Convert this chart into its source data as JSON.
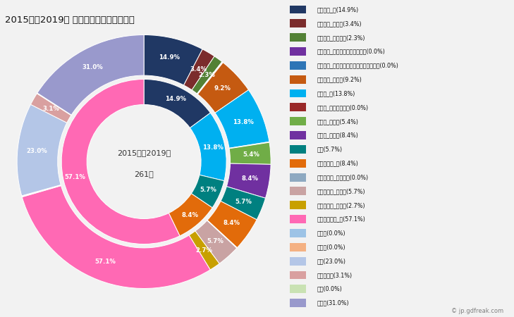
{
  "title": "2015年～2019年 飯南町の女性の死因構成",
  "center_text_line1": "2015年～2019年",
  "center_text_line2": "261人",
  "outer_slices": [
    {
      "label": "悪性腫瘍_計(14.9%)",
      "value": 14.9,
      "color": "#203864"
    },
    {
      "label": "悪性腫瘍_胃がん(3.4%)",
      "value": 3.4,
      "color": "#7B2C2C"
    },
    {
      "label": "悪性腫瘍_大腸がん(2.3%)",
      "value": 2.3,
      "color": "#538135"
    },
    {
      "label": "悪性腫瘍_肝がん・肝内胆管がん(0.0%)",
      "value": 0.15,
      "color": "#7030A0"
    },
    {
      "label": "悪性腫瘍_気管がん・気管支がん・肺がん(0.0%)",
      "value": 0.15,
      "color": "#2E75B6"
    },
    {
      "label": "悪性腫瘍_その他(9.2%)",
      "value": 9.2,
      "color": "#C55A11"
    },
    {
      "label": "心疾患_計(13.8%)",
      "value": 13.8,
      "color": "#00B0F0"
    },
    {
      "label": "心疾患_急性心筋梗塞(0.0%)",
      "value": 0.15,
      "color": "#992828"
    },
    {
      "label": "心疾患_心不全(5.4%)",
      "value": 5.4,
      "color": "#70AD47"
    },
    {
      "label": "心疾患_その他(8.4%)",
      "value": 8.4,
      "color": "#7030A0"
    },
    {
      "label": "肺炎(5.7%)",
      "value": 5.7,
      "color": "#008080"
    },
    {
      "label": "脳血管疾患_計(8.4%)",
      "value": 8.4,
      "color": "#E26B0A"
    },
    {
      "label": "脳血管疾患_脳内出血(0.0%)",
      "value": 0.15,
      "color": "#8EA9C1"
    },
    {
      "label": "脳血管疾患_脳梗塞(5.7%)",
      "value": 5.7,
      "color": "#C9A3A3"
    },
    {
      "label": "脳血管疾患_その他(2.7%)",
      "value": 2.7,
      "color": "#C8A000"
    },
    {
      "label": "その他の死因_計(57.1%)",
      "value": 57.1,
      "color": "#FF69B4"
    },
    {
      "label": "肝疾患(0.0%)",
      "value": 0.15,
      "color": "#9DC3E6"
    },
    {
      "label": "腎不全(0.0%)",
      "value": 0.15,
      "color": "#F4B183"
    },
    {
      "label": "老衰(23.0%)",
      "value": 23.0,
      "color": "#B4C6E7"
    },
    {
      "label": "不慮の事故(3.1%)",
      "value": 3.1,
      "color": "#D9A0A0"
    },
    {
      "label": "自殺(0.0%)",
      "value": 0.15,
      "color": "#C9E2B3"
    },
    {
      "label": "その他(31.0%)",
      "value": 31.0,
      "color": "#9999CC"
    }
  ],
  "inner_slices": [
    {
      "label": "悪性腫瘍_計",
      "value": 14.9,
      "color": "#203864"
    },
    {
      "label": "心疾患_計",
      "value": 13.8,
      "color": "#00B0F0"
    },
    {
      "label": "肺炎",
      "value": 5.7,
      "color": "#008080"
    },
    {
      "label": "脳血管疾患_計",
      "value": 8.4,
      "color": "#E26B0A"
    },
    {
      "label": "その他の死因_計",
      "value": 57.1,
      "color": "#FF69B4"
    }
  ],
  "bg_color": "#F2F2F2",
  "watermark": "© jp.gdfreak.com",
  "label_threshold_outer": 2.0,
  "label_threshold_inner": 5.0
}
